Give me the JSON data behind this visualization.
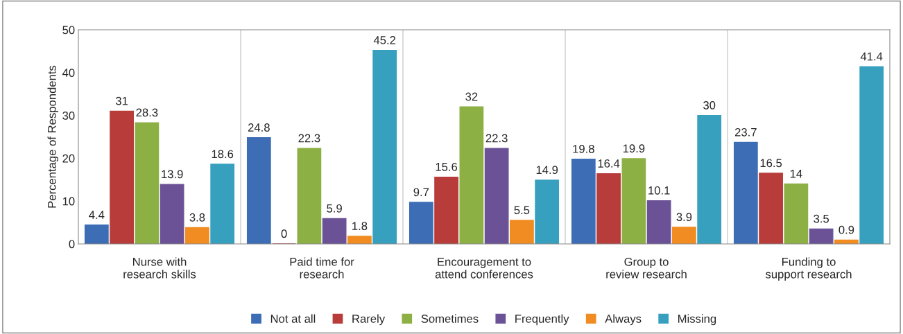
{
  "chart_data": {
    "type": "bar",
    "ylabel": "Percentage of Respondents",
    "categories": [
      "Nurse with\nresearch skills",
      "Paid time for\nresearch",
      "Encouragement to\nattend conferences",
      "Group to\nreview research",
      "Funding to\nsupport research"
    ],
    "series": [
      {
        "name": "Not at all",
        "color": "#3d6db5",
        "values": [
          4.4,
          24.8,
          9.7,
          19.8,
          23.7
        ]
      },
      {
        "name": "Rarely",
        "color": "#b83c3a",
        "values": [
          31,
          0,
          15.6,
          16.4,
          16.5
        ]
      },
      {
        "name": "Sometimes",
        "color": "#8db045",
        "values": [
          28.3,
          22.3,
          32,
          19.9,
          14
        ]
      },
      {
        "name": "Frequently",
        "color": "#6b5296",
        "values": [
          13.9,
          5.9,
          22.3,
          10.1,
          3.5
        ]
      },
      {
        "name": "Always",
        "color": "#f08c22",
        "values": [
          3.8,
          1.8,
          5.5,
          3.9,
          0.9
        ]
      },
      {
        "name": "Missing",
        "color": "#37a0bf",
        "values": [
          18.6,
          45.2,
          14.9,
          30,
          41.4
        ]
      }
    ],
    "ylim": [
      0,
      50
    ],
    "yticks": [
      0,
      10,
      20,
      30,
      40,
      50
    ],
    "grid": "x",
    "legend": "bottom",
    "data_labels": true
  }
}
